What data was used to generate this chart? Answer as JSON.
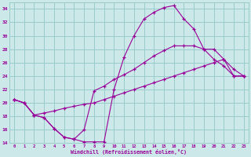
{
  "xlabel": "Windchill (Refroidissement éolien,°C)",
  "bg_color": "#cce8e8",
  "grid_color": "#99cccc",
  "line_color": "#990099",
  "xlim": [
    -0.5,
    23.5
  ],
  "ylim": [
    14,
    35
  ],
  "xticks": [
    0,
    1,
    2,
    3,
    4,
    5,
    6,
    7,
    8,
    9,
    10,
    11,
    12,
    13,
    14,
    15,
    16,
    17,
    18,
    19,
    20,
    21,
    22,
    23
  ],
  "yticks": [
    14,
    16,
    18,
    20,
    22,
    24,
    26,
    28,
    30,
    32,
    34
  ],
  "line1_x": [
    0,
    1,
    2,
    3,
    4,
    5,
    6,
    7,
    8,
    9,
    10,
    11,
    12,
    13,
    14,
    15,
    16,
    17,
    18,
    19,
    20,
    21,
    22,
    23
  ],
  "line1_y": [
    20.5,
    20.0,
    18.2,
    17.8,
    16.2,
    14.9,
    14.6,
    14.2,
    14.2,
    14.2,
    22.0,
    26.8,
    30.0,
    32.5,
    33.5,
    34.2,
    34.5,
    32.5,
    31.0,
    28.0,
    26.5,
    25.5,
    24.0,
    24.0
  ],
  "line2_x": [
    0,
    1,
    2,
    3,
    4,
    5,
    6,
    7,
    8,
    9,
    10,
    11,
    12,
    13,
    14,
    15,
    16,
    17,
    18,
    19,
    20,
    21,
    22,
    23
  ],
  "line2_y": [
    20.5,
    20.0,
    18.2,
    18.5,
    18.8,
    19.2,
    19.5,
    19.8,
    20.0,
    20.5,
    21.0,
    21.5,
    22.0,
    22.5,
    23.0,
    23.5,
    24.0,
    24.5,
    25.0,
    25.5,
    26.0,
    26.5,
    24.0,
    24.0
  ],
  "line3_x": [
    0,
    1,
    2,
    3,
    4,
    5,
    6,
    7,
    8,
    9,
    10,
    11,
    12,
    13,
    14,
    15,
    16,
    17,
    18,
    19,
    20,
    21,
    22,
    23
  ],
  "line3_y": [
    20.5,
    20.0,
    18.2,
    17.8,
    16.2,
    14.9,
    14.6,
    16.0,
    21.8,
    22.5,
    23.5,
    24.2,
    25.0,
    26.0,
    27.0,
    27.8,
    28.5,
    28.5,
    28.5,
    28.0,
    28.0,
    26.5,
    25.0,
    24.0
  ]
}
